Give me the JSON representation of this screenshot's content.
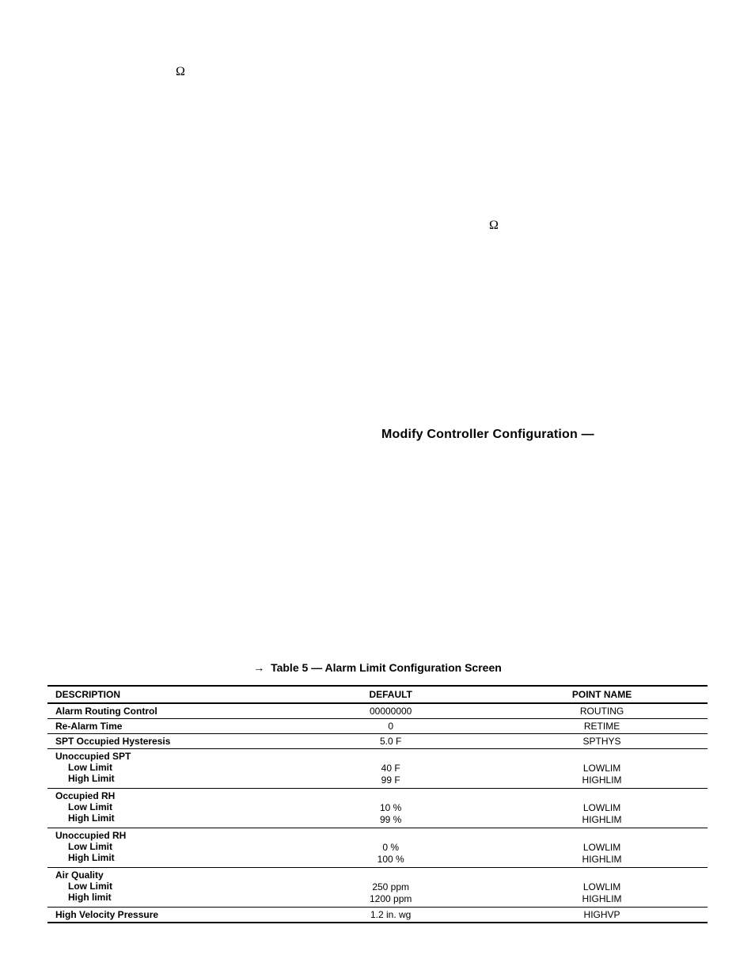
{
  "symbols": {
    "omega_left": "Ω",
    "omega_right": "Ω"
  },
  "heading_right": "Modify Controller Configuration —",
  "table": {
    "caption_arrow": "→",
    "caption": "Table 5 — Alarm Limit Configuration Screen",
    "columns": {
      "description": "DESCRIPTION",
      "default": "DEFAULT",
      "point_name": "POINT NAME"
    },
    "rows": [
      {
        "type": "single",
        "description": "Alarm Routing Control",
        "default": "00000000",
        "point_name": "ROUTING"
      },
      {
        "type": "single",
        "description": "Re-Alarm Time",
        "default": "0",
        "point_name": "RETIME"
      },
      {
        "type": "single",
        "description": "SPT Occupied Hysteresis",
        "default": "5.0 F",
        "point_name": "SPTHYS"
      },
      {
        "type": "group",
        "header": "Unoccupied SPT",
        "sub1_label": "Low Limit",
        "sub1_default": "40 F",
        "sub1_point": "LOWLIM",
        "sub2_label": "High Limit",
        "sub2_default": "99 F",
        "sub2_point": "HIGHLIM"
      },
      {
        "type": "group",
        "header": "Occupied RH",
        "sub1_label": "Low Limit",
        "sub1_default": "10 %",
        "sub1_point": "LOWLIM",
        "sub2_label": "High Limit",
        "sub2_default": "99 %",
        "sub2_point": "HIGHLIM"
      },
      {
        "type": "group",
        "header": "Unoccupied RH",
        "sub1_label": "Low Limit",
        "sub1_default": "0 %",
        "sub1_point": "LOWLIM",
        "sub2_label": "High Limit",
        "sub2_default": "100 %",
        "sub2_point": "HIGHLIM"
      },
      {
        "type": "group",
        "header": "Air Quality",
        "sub1_label": "Low Limit",
        "sub1_default": "250 ppm",
        "sub1_point": "LOWLIM",
        "sub2_label": "High limit",
        "sub2_default": "1200 ppm",
        "sub2_point": "HIGHLIM"
      },
      {
        "type": "single",
        "description": "High Velocity Pressure",
        "default": "1.2 in. wg",
        "point_name": "HIGHVP"
      }
    ]
  }
}
